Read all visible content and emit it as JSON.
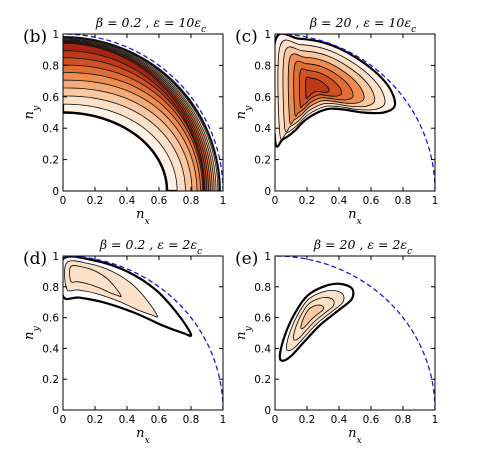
{
  "chart_data": [
    {
      "type": "contour",
      "panel_label": "(b)",
      "title": "β = 0.2  ,  ε = 10ε",
      "title_sub": "c",
      "xlabel": "n",
      "xlabel_sub": "x",
      "ylabel": "n",
      "ylabel_sub": "y",
      "xlim": [
        0,
        1
      ],
      "ylim": [
        0,
        1
      ],
      "xticks": [
        "0",
        "0.2",
        "0.4",
        "0.6",
        "0.8",
        "1"
      ],
      "yticks": [
        "0",
        "0.2",
        "0.4",
        "0.6",
        "0.8",
        "1"
      ],
      "region": "annulus",
      "inner_boundary": {
        "ax": 0.65,
        "ay": 0.5
      },
      "outer_boundary": {
        "ax": 0.98,
        "ay": 0.98
      },
      "peak": {
        "x": 0.12,
        "y": 0.92
      },
      "levels": 9,
      "unit_circle": "dashed"
    },
    {
      "type": "contour",
      "panel_label": "(c)",
      "title": "β = 20  ,  ε = 10ε",
      "title_sub": "c",
      "xlabel": "n",
      "xlabel_sub": "x",
      "ylabel": "n",
      "ylabel_sub": "y",
      "xlim": [
        0,
        1
      ],
      "ylim": [
        0,
        1
      ],
      "xticks": [
        "0",
        "0.2",
        "0.4",
        "0.6",
        "0.8",
        "1"
      ],
      "yticks": [
        "0",
        "0.2",
        "0.4",
        "0.6",
        "0.8",
        "1"
      ],
      "region": "crescent",
      "boundary": [
        [
          0.0,
          0.95
        ],
        [
          0.15,
          0.97
        ],
        [
          0.35,
          0.93
        ],
        [
          0.55,
          0.82
        ],
        [
          0.7,
          0.68
        ],
        [
          0.75,
          0.55
        ],
        [
          0.68,
          0.5
        ],
        [
          0.55,
          0.5
        ],
        [
          0.42,
          0.52
        ],
        [
          0.32,
          0.52
        ],
        [
          0.2,
          0.46
        ],
        [
          0.12,
          0.38
        ],
        [
          0.05,
          0.33
        ],
        [
          0.0,
          0.33
        ]
      ],
      "peak": {
        "x": 0.24,
        "y": 0.66
      },
      "levels": 7,
      "unit_circle": "dashed"
    },
    {
      "type": "contour",
      "panel_label": "(d)",
      "title": "β = 0.2  ,  ε = 2ε",
      "title_sub": "c",
      "xlabel": "n",
      "xlabel_sub": "x",
      "ylabel": "n",
      "ylabel_sub": "y",
      "xlim": [
        0,
        1
      ],
      "ylim": [
        0,
        1
      ],
      "xticks": [
        "0",
        "0.2",
        "0.4",
        "0.6",
        "0.8",
        "1"
      ],
      "yticks": [
        "0",
        "0.2",
        "0.4",
        "0.6",
        "0.8",
        "1"
      ],
      "region": "crescent",
      "boundary": [
        [
          0.0,
          0.98
        ],
        [
          0.2,
          0.97
        ],
        [
          0.4,
          0.9
        ],
        [
          0.58,
          0.78
        ],
        [
          0.72,
          0.62
        ],
        [
          0.8,
          0.49
        ],
        [
          0.75,
          0.5
        ],
        [
          0.62,
          0.55
        ],
        [
          0.45,
          0.63
        ],
        [
          0.25,
          0.7
        ],
        [
          0.1,
          0.73
        ],
        [
          0.0,
          0.74
        ]
      ],
      "peak": {
        "x": 0.08,
        "y": 0.9
      },
      "levels": 3,
      "unit_circle": "dashed"
    },
    {
      "type": "contour",
      "panel_label": "(e)",
      "title": "β = 20  ,  ε = 2ε",
      "title_sub": "c",
      "xlabel": "n",
      "xlabel_sub": "x",
      "ylabel": "n",
      "ylabel_sub": "y",
      "xlim": [
        0,
        1
      ],
      "ylim": [
        0,
        1
      ],
      "xticks": [
        "0",
        "0.2",
        "0.4",
        "0.6",
        "0.8",
        "1"
      ],
      "yticks": [
        "0",
        "0.2",
        "0.4",
        "0.6",
        "0.8",
        "1"
      ],
      "region": "crescent",
      "boundary": [
        [
          0.03,
          0.35
        ],
        [
          0.06,
          0.48
        ],
        [
          0.12,
          0.62
        ],
        [
          0.2,
          0.74
        ],
        [
          0.3,
          0.8
        ],
        [
          0.4,
          0.82
        ],
        [
          0.48,
          0.79
        ],
        [
          0.48,
          0.72
        ],
        [
          0.4,
          0.65
        ],
        [
          0.28,
          0.55
        ],
        [
          0.18,
          0.44
        ],
        [
          0.1,
          0.35
        ],
        [
          0.05,
          0.32
        ]
      ],
      "peak": {
        "x": 0.22,
        "y": 0.62
      },
      "levels": 4,
      "unit_circle": "dashed"
    }
  ]
}
